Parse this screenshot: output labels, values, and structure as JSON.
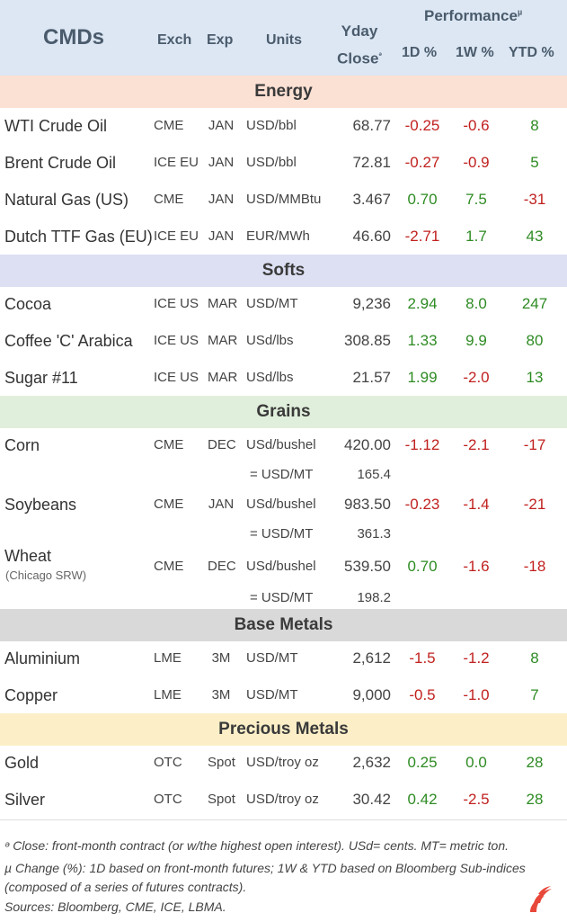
{
  "header": {
    "title": "CMDs",
    "exch": "Exch",
    "exp": "Exp",
    "units": "Units",
    "yday_line1": "Yday",
    "yday_line2": "Close",
    "yday_mark": "ᵊ",
    "performance": "Performance",
    "performance_mark": "µ",
    "d1": "1D %",
    "w1": "1W %",
    "ytd": "YTD %"
  },
  "sections": [
    {
      "label": "Energy",
      "color": "#fbe0d4"
    },
    {
      "label": "Softs",
      "color": "#dde0f3"
    },
    {
      "label": "Grains",
      "color": "#e0efdb"
    },
    {
      "label": "Base Metals",
      "color": "#d9d9d9"
    },
    {
      "label": "Precious Metals",
      "color": "#fcefc8"
    }
  ],
  "energy": [
    {
      "name": "WTI Crude Oil",
      "exch": "CME",
      "exp": "JAN",
      "units": "USD/bbl",
      "close": "68.77",
      "d1": "-0.25",
      "w1": "-0.6",
      "ytd": "8"
    },
    {
      "name": "Brent Crude Oil",
      "exch": "ICE EU",
      "exp": "JAN",
      "units": "USD/bbl",
      "close": "72.81",
      "d1": "-0.27",
      "w1": "-0.9",
      "ytd": "5"
    },
    {
      "name": "Natural Gas (US)",
      "exch": "CME",
      "exp": "JAN",
      "units": "USD/MMBtu",
      "close": "3.467",
      "d1": "0.70",
      "w1": "7.5",
      "ytd": "-31"
    },
    {
      "name": "Dutch TTF Gas (EU)",
      "exch": "ICE EU",
      "exp": "JAN",
      "units": "EUR/MWh",
      "close": "46.60",
      "d1": "-2.71",
      "w1": "1.7",
      "ytd": "43"
    }
  ],
  "softs": [
    {
      "name": "Cocoa",
      "exch": "ICE US",
      "exp": "MAR",
      "units": "USD/MT",
      "close": "9,236",
      "d1": "2.94",
      "w1": "8.0",
      "ytd": "247"
    },
    {
      "name": "Coffee 'C' Arabica",
      "exch": "ICE US",
      "exp": "MAR",
      "units": "USd/lbs",
      "close": "308.85",
      "d1": "1.33",
      "w1": "9.9",
      "ytd": "80"
    },
    {
      "name": "Sugar #11",
      "exch": "ICE US",
      "exp": "MAR",
      "units": "USd/lbs",
      "close": "21.57",
      "d1": "1.99",
      "w1": "-2.0",
      "ytd": "13"
    }
  ],
  "grains": [
    {
      "name": "Corn",
      "exch": "CME",
      "exp": "DEC",
      "units": "USd/bushel",
      "close": "420.00",
      "d1": "-1.12",
      "w1": "-2.1",
      "ytd": "-17",
      "mt_label": "= USD/MT",
      "mt_value": "165.4"
    },
    {
      "name": "Soybeans",
      "exch": "CME",
      "exp": "JAN",
      "units": "USd/bushel",
      "close": "983.50",
      "d1": "-0.23",
      "w1": "-1.4",
      "ytd": "-21",
      "mt_label": "= USD/MT",
      "mt_value": "361.3"
    },
    {
      "name": "Wheat",
      "note": "(Chicago SRW)",
      "exch": "CME",
      "exp": "DEC",
      "units": "USd/bushel",
      "close": "539.50",
      "d1": "0.70",
      "w1": "-1.6",
      "ytd": "-18",
      "mt_label": "= USD/MT",
      "mt_value": "198.2"
    }
  ],
  "base_metals": [
    {
      "name": "Aluminium",
      "exch": "LME",
      "exp": "3M",
      "units": "USD/MT",
      "close": "2,612",
      "d1": "-1.5",
      "w1": "-1.2",
      "ytd": "8"
    },
    {
      "name": "Copper",
      "exch": "LME",
      "exp": "3M",
      "units": "USD/MT",
      "close": "9,000",
      "d1": "-0.5",
      "w1": "-1.0",
      "ytd": "7"
    }
  ],
  "precious_metals": [
    {
      "name": "Gold",
      "exch": "OTC",
      "exp": "Spot",
      "units": "USD/troy oz",
      "close": "2,632",
      "d1": "0.25",
      "w1": "0.0",
      "ytd": "28"
    },
    {
      "name": "Silver",
      "exch": "OTC",
      "exp": "Spot",
      "units": "USD/troy oz",
      "close": "30.42",
      "d1": "0.42",
      "w1": "-2.5",
      "ytd": "28"
    }
  ],
  "footnotes": {
    "close_note": "ᵊ Close: front-month contract (or w/the highest open interest). USd= cents. MT= metric ton.",
    "change_note_1": "µ Change (%): 1D based on front-month futures; 1W & YTD based on Bloomberg Sub-indices",
    "change_note_2": "(composed of a series of futures contracts).",
    "sources": "Sources: Bloomberg, CME, ICE, LBMA."
  },
  "colors": {
    "header_bg": "#dce7f3",
    "negative": "#c0211f",
    "positive": "#2e8b23",
    "logo": "#e8483a"
  },
  "logo_icon": "flame-logo-icon"
}
